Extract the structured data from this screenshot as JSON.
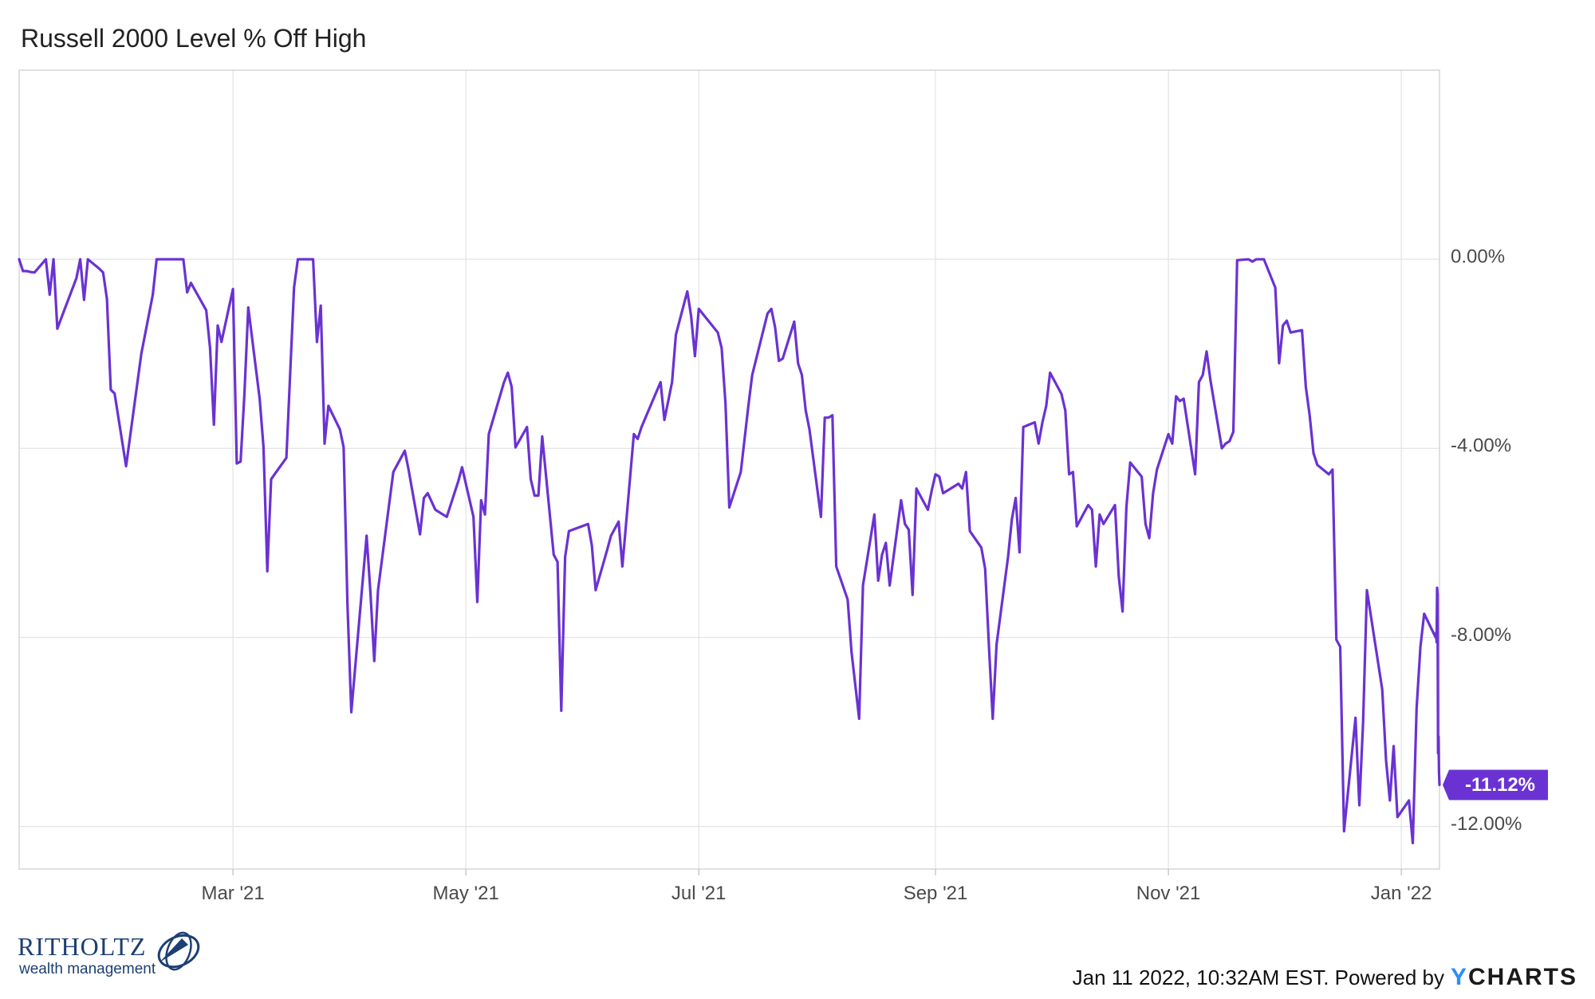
{
  "chart_data": {
    "type": "line",
    "title": "Russell 2000 Level % Off High",
    "xlabel": "",
    "ylabel": "",
    "x_tick_labels": [
      "Mar '21",
      "May '21",
      "Jul '21",
      "Sep '21",
      "Nov '21",
      "Jan '22"
    ],
    "y_tick_labels": [
      "0.00%",
      "-4.00%",
      "-8.00%",
      "-12.00%"
    ],
    "y_ticks": [
      0,
      -4,
      -8,
      -12
    ],
    "ylim": [
      -12.9,
      4.0
    ],
    "x_range": [
      "2021-01-04",
      "2022-01-11"
    ],
    "grid": true,
    "last_value_label": "-11.12%",
    "series": [
      {
        "color": "#6a32d3",
        "points": [
          [
            "2021-01-04",
            0.0
          ],
          [
            "2021-01-05",
            -0.25
          ],
          [
            "2021-01-06",
            -0.25
          ],
          [
            "2021-01-07",
            -0.27
          ],
          [
            "2021-01-08",
            -0.28
          ],
          [
            "2021-01-11",
            0.0
          ],
          [
            "2021-01-12",
            -0.75
          ],
          [
            "2021-01-13",
            0.0
          ],
          [
            "2021-01-14",
            -1.47
          ],
          [
            "2021-01-15",
            -1.25
          ],
          [
            "2021-01-19",
            -0.4
          ],
          [
            "2021-01-20",
            0.0
          ],
          [
            "2021-01-21",
            -0.86
          ],
          [
            "2021-01-22",
            0.0
          ],
          [
            "2021-01-25",
            -0.2
          ],
          [
            "2021-01-26",
            -0.28
          ],
          [
            "2021-01-27",
            -0.84
          ],
          [
            "2021-01-28",
            -2.76
          ],
          [
            "2021-01-29",
            -2.84
          ],
          [
            "2021-02-01",
            -4.38
          ],
          [
            "2021-02-05",
            -2.0
          ],
          [
            "2021-02-08",
            -0.75
          ],
          [
            "2021-02-09",
            0.0
          ],
          [
            "2021-02-10",
            0.0
          ],
          [
            "2021-02-11",
            0.0
          ],
          [
            "2021-02-12",
            0.0
          ],
          [
            "2021-02-16",
            0.0
          ],
          [
            "2021-02-17",
            -0.7
          ],
          [
            "2021-02-18",
            -0.5
          ],
          [
            "2021-02-22",
            -1.08
          ],
          [
            "2021-02-23",
            -1.88
          ],
          [
            "2021-02-24",
            -3.5
          ],
          [
            "2021-02-25",
            -1.4
          ],
          [
            "2021-02-26",
            -1.75
          ],
          [
            "2021-03-01",
            -0.63
          ],
          [
            "2021-03-02",
            -4.32
          ],
          [
            "2021-03-03",
            -4.28
          ],
          [
            "2021-03-04",
            -2.85
          ],
          [
            "2021-03-05",
            -1.02
          ],
          [
            "2021-03-08",
            -2.95
          ],
          [
            "2021-03-09",
            -3.97
          ],
          [
            "2021-03-10",
            -6.6
          ],
          [
            "2021-03-11",
            -4.65
          ],
          [
            "2021-03-15",
            -4.2
          ],
          [
            "2021-03-17",
            -0.6
          ],
          [
            "2021-03-18",
            0.0
          ],
          [
            "2021-03-19",
            0.0
          ],
          [
            "2021-03-22",
            0.0
          ],
          [
            "2021-03-23",
            -1.75
          ],
          [
            "2021-03-24",
            -0.98
          ],
          [
            "2021-03-25",
            -3.9
          ],
          [
            "2021-03-26",
            -3.1
          ],
          [
            "2021-03-29",
            -3.6
          ],
          [
            "2021-03-30",
            -3.98
          ],
          [
            "2021-03-31",
            -7.3
          ],
          [
            "2021-04-01",
            -9.58
          ],
          [
            "2021-04-05",
            -5.85
          ],
          [
            "2021-04-06",
            -7.05
          ],
          [
            "2021-04-07",
            -8.5
          ],
          [
            "2021-04-08",
            -7.0
          ],
          [
            "2021-04-12",
            -4.5
          ],
          [
            "2021-04-15",
            -4.05
          ],
          [
            "2021-04-16",
            -4.45
          ],
          [
            "2021-04-19",
            -5.82
          ],
          [
            "2021-04-20",
            -5.05
          ],
          [
            "2021-04-21",
            -4.95
          ],
          [
            "2021-04-23",
            -5.3
          ],
          [
            "2021-04-26",
            -5.45
          ],
          [
            "2021-04-28",
            -4.95
          ],
          [
            "2021-04-29",
            -4.7
          ],
          [
            "2021-04-30",
            -4.4
          ],
          [
            "2021-05-03",
            -5.45
          ],
          [
            "2021-05-04",
            -7.25
          ],
          [
            "2021-05-05",
            -5.1
          ],
          [
            "2021-05-06",
            -5.4
          ],
          [
            "2021-05-07",
            -3.7
          ],
          [
            "2021-05-11",
            -2.6
          ],
          [
            "2021-05-12",
            -2.4
          ],
          [
            "2021-05-13",
            -2.7
          ],
          [
            "2021-05-14",
            -3.98
          ],
          [
            "2021-05-17",
            -3.55
          ],
          [
            "2021-05-18",
            -4.65
          ],
          [
            "2021-05-19",
            -5.0
          ],
          [
            "2021-05-20",
            -5.0
          ],
          [
            "2021-05-21",
            -3.75
          ],
          [
            "2021-05-24",
            -6.25
          ],
          [
            "2021-05-25",
            -6.4
          ],
          [
            "2021-05-26",
            -9.55
          ],
          [
            "2021-05-27",
            -6.3
          ],
          [
            "2021-05-28",
            -5.75
          ],
          [
            "2021-06-02",
            -5.6
          ],
          [
            "2021-06-03",
            -6.05
          ],
          [
            "2021-06-04",
            -7.0
          ],
          [
            "2021-06-07",
            -6.15
          ],
          [
            "2021-06-08",
            -5.85
          ],
          [
            "2021-06-10",
            -5.55
          ],
          [
            "2021-06-11",
            -6.5
          ],
          [
            "2021-06-14",
            -3.7
          ],
          [
            "2021-06-15",
            -3.8
          ],
          [
            "2021-06-16",
            -3.55
          ],
          [
            "2021-06-21",
            -2.6
          ],
          [
            "2021-06-22",
            -3.4
          ],
          [
            "2021-06-23",
            -3.0
          ],
          [
            "2021-06-24",
            -2.6
          ],
          [
            "2021-06-25",
            -1.6
          ],
          [
            "2021-06-28",
            -0.68
          ],
          [
            "2021-06-29",
            -1.2
          ],
          [
            "2021-06-30",
            -2.05
          ],
          [
            "2021-07-01",
            -1.05
          ],
          [
            "2021-07-06",
            -1.55
          ],
          [
            "2021-07-07",
            -1.88
          ],
          [
            "2021-07-08",
            -3.05
          ],
          [
            "2021-07-09",
            -5.25
          ],
          [
            "2021-07-12",
            -4.5
          ],
          [
            "2021-07-14",
            -3.1
          ],
          [
            "2021-07-15",
            -2.45
          ],
          [
            "2021-07-19",
            -1.15
          ],
          [
            "2021-07-20",
            -1.05
          ],
          [
            "2021-07-21",
            -1.45
          ],
          [
            "2021-07-22",
            -2.15
          ],
          [
            "2021-07-23",
            -2.1
          ],
          [
            "2021-07-26",
            -1.32
          ],
          [
            "2021-07-27",
            -2.2
          ],
          [
            "2021-07-28",
            -2.45
          ],
          [
            "2021-07-29",
            -3.2
          ],
          [
            "2021-07-30",
            -3.6
          ],
          [
            "2021-08-02",
            -5.45
          ],
          [
            "2021-08-03",
            -3.35
          ],
          [
            "2021-08-04",
            -3.35
          ],
          [
            "2021-08-05",
            -3.3
          ],
          [
            "2021-08-06",
            -6.5
          ],
          [
            "2021-08-09",
            -7.2
          ],
          [
            "2021-08-10",
            -8.3
          ],
          [
            "2021-08-12",
            -9.72
          ],
          [
            "2021-08-13",
            -6.9
          ],
          [
            "2021-08-16",
            -5.4
          ],
          [
            "2021-08-17",
            -6.8
          ],
          [
            "2021-08-18",
            -6.25
          ],
          [
            "2021-08-19",
            -6.0
          ],
          [
            "2021-08-20",
            -6.9
          ],
          [
            "2021-08-23",
            -5.1
          ],
          [
            "2021-08-24",
            -5.6
          ],
          [
            "2021-08-25",
            -5.72
          ],
          [
            "2021-08-26",
            -7.1
          ],
          [
            "2021-08-27",
            -4.85
          ],
          [
            "2021-08-30",
            -5.3
          ],
          [
            "2021-08-31",
            -4.9
          ],
          [
            "2021-09-01",
            -4.55
          ],
          [
            "2021-09-02",
            -4.6
          ],
          [
            "2021-09-03",
            -4.95
          ],
          [
            "2021-09-07",
            -4.75
          ],
          [
            "2021-09-08",
            -4.85
          ],
          [
            "2021-09-09",
            -4.5
          ],
          [
            "2021-09-10",
            -5.75
          ],
          [
            "2021-09-13",
            -6.1
          ],
          [
            "2021-09-14",
            -6.55
          ],
          [
            "2021-09-15",
            -8.2
          ],
          [
            "2021-09-16",
            -9.72
          ],
          [
            "2021-09-17",
            -8.15
          ],
          [
            "2021-09-20",
            -6.3
          ],
          [
            "2021-09-21",
            -5.5
          ],
          [
            "2021-09-22",
            -5.05
          ],
          [
            "2021-09-23",
            -6.2
          ],
          [
            "2021-09-24",
            -3.55
          ],
          [
            "2021-09-27",
            -3.45
          ],
          [
            "2021-09-28",
            -3.9
          ],
          [
            "2021-09-29",
            -3.45
          ],
          [
            "2021-09-30",
            -3.1
          ],
          [
            "2021-10-01",
            -2.4
          ],
          [
            "2021-10-04",
            -2.85
          ],
          [
            "2021-10-05",
            -3.2
          ],
          [
            "2021-10-06",
            -4.55
          ],
          [
            "2021-10-07",
            -4.5
          ],
          [
            "2021-10-08",
            -5.65
          ],
          [
            "2021-10-11",
            -5.2
          ],
          [
            "2021-10-12",
            -5.3
          ],
          [
            "2021-10-13",
            -6.5
          ],
          [
            "2021-10-14",
            -5.4
          ],
          [
            "2021-10-15",
            -5.6
          ],
          [
            "2021-10-18",
            -5.2
          ],
          [
            "2021-10-19",
            -6.7
          ],
          [
            "2021-10-20",
            -7.45
          ],
          [
            "2021-10-21",
            -5.25
          ],
          [
            "2021-10-22",
            -4.3
          ],
          [
            "2021-10-25",
            -4.6
          ],
          [
            "2021-10-26",
            -5.6
          ],
          [
            "2021-10-27",
            -5.9
          ],
          [
            "2021-10-28",
            -4.95
          ],
          [
            "2021-10-29",
            -4.45
          ],
          [
            "2021-11-01",
            -3.7
          ],
          [
            "2021-11-02",
            -3.9
          ],
          [
            "2021-11-03",
            -2.9
          ],
          [
            "2021-11-04",
            -3.0
          ],
          [
            "2021-11-05",
            -2.95
          ],
          [
            "2021-11-08",
            -4.55
          ],
          [
            "2021-11-09",
            -2.6
          ],
          [
            "2021-11-10",
            -2.45
          ],
          [
            "2021-11-11",
            -1.95
          ],
          [
            "2021-11-12",
            -2.55
          ],
          [
            "2021-11-15",
            -4.0
          ],
          [
            "2021-11-16",
            -3.9
          ],
          [
            "2021-11-17",
            -3.85
          ],
          [
            "2021-11-18",
            -3.65
          ],
          [
            "2021-11-19",
            -0.02
          ],
          [
            "2021-11-22",
            0.0
          ],
          [
            "2021-11-23",
            -0.05
          ],
          [
            "2021-11-24",
            0.0
          ],
          [
            "2021-11-26",
            0.0
          ],
          [
            "2021-11-29",
            -0.6
          ],
          [
            "2021-11-30",
            -2.2
          ],
          [
            "2021-12-01",
            -1.4
          ],
          [
            "2021-12-02",
            -1.3
          ],
          [
            "2021-12-03",
            -1.55
          ],
          [
            "2021-12-06",
            -1.5
          ],
          [
            "2021-12-07",
            -2.7
          ],
          [
            "2021-12-08",
            -3.3
          ],
          [
            "2021-12-09",
            -4.1
          ],
          [
            "2021-12-10",
            -4.35
          ],
          [
            "2021-12-13",
            -4.55
          ],
          [
            "2021-12-14",
            -4.45
          ],
          [
            "2021-12-15",
            -8.05
          ],
          [
            "2021-12-16",
            -8.2
          ],
          [
            "2021-12-17",
            -12.1
          ],
          [
            "2021-12-20",
            -9.7
          ],
          [
            "2021-12-21",
            -11.55
          ],
          [
            "2021-12-22",
            -9.8
          ],
          [
            "2021-12-23",
            -7.0
          ],
          [
            "2021-12-27",
            -9.1
          ],
          [
            "2021-12-28",
            -10.6
          ],
          [
            "2021-12-29",
            -11.45
          ],
          [
            "2021-12-30",
            -10.3
          ],
          [
            "2021-12-31",
            -11.8
          ],
          [
            "2022-01-03",
            -11.45
          ],
          [
            "2022-01-04",
            -12.35
          ],
          [
            "2022-01-05",
            -9.5
          ],
          [
            "2022-01-06",
            -8.2
          ],
          [
            "2022-01-07",
            -7.5
          ],
          [
            "2022-01-10",
            -8.0
          ],
          [
            "2022-01-11",
            -7.9
          ],
          [
            "2022-01-11",
            -8.1
          ],
          [
            "2022-01-11",
            -6.95
          ],
          [
            "2022-01-11",
            -7.1
          ],
          [
            "2022-01-11",
            -10.45
          ],
          [
            "2022-01-11",
            -10.1
          ],
          [
            "2022-01-11",
            -10.85
          ],
          [
            "2022-01-11",
            -11.12
          ]
        ]
      }
    ]
  },
  "footer": {
    "timestamp_text": "Jan 11 2022, 10:32AM EST. Powered by",
    "brand_y": "Y",
    "brand_rest": "CHARTS"
  },
  "logo": {
    "name": "RITHOLTZ",
    "subtitle": "wealth management"
  }
}
